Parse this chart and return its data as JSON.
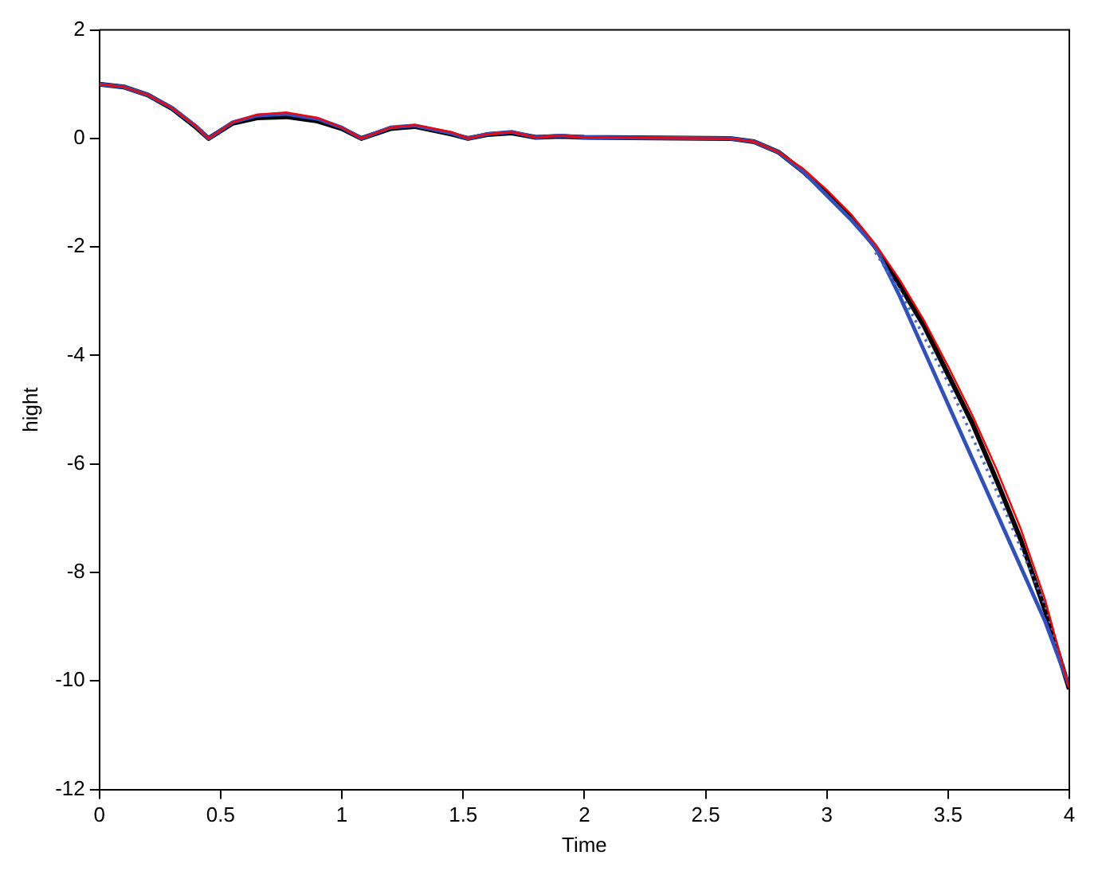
{
  "chart_data": {
    "type": "line",
    "xlabel": "Time",
    "ylabel": "hight",
    "xlim": [
      0,
      4
    ],
    "ylim": [
      -12,
      2
    ],
    "xticks": [
      0,
      0.5,
      1,
      1.5,
      2,
      2.5,
      3,
      3.5,
      4
    ],
    "yticks": [
      -12,
      -10,
      -8,
      -6,
      -4,
      -2,
      0,
      2
    ],
    "grid": false,
    "legend": false,
    "marker": "none",
    "series": [
      {
        "color": "#000000",
        "line_style": "solid",
        "x": [
          0,
          0.1,
          0.2,
          0.3,
          0.4,
          0.45,
          0.55,
          0.65,
          0.77,
          0.9,
          1.0,
          1.08,
          1.2,
          1.3,
          1.45,
          1.52,
          1.6,
          1.7,
          1.8,
          1.9,
          2.0,
          2.6,
          2.7,
          2.8,
          2.9,
          3.0,
          3.1,
          3.2,
          3.3,
          3.4,
          3.5,
          3.6,
          3.7,
          3.8,
          3.9,
          4.0
        ],
        "values": [
          1,
          0.95,
          0.8,
          0.55,
          0.2,
          0,
          0.28,
          0.38,
          0.4,
          0.32,
          0.18,
          0,
          0.18,
          0.22,
          0.08,
          0,
          0.07,
          0.1,
          0.02,
          0.04,
          0.02,
          0,
          -0.06,
          -0.25,
          -0.6,
          -1.0,
          -1.45,
          -2.0,
          -2.7,
          -3.45,
          -4.35,
          -5.25,
          -6.3,
          -7.4,
          -8.7,
          -10.15
        ]
      },
      {
        "color": "#3050c0",
        "line_style": "solid",
        "x": [
          0,
          0.1,
          0.2,
          0.3,
          0.4,
          0.45,
          0.55,
          0.65,
          0.77,
          0.9,
          1.0,
          1.08,
          1.2,
          1.3,
          1.45,
          1.52,
          1.6,
          1.7,
          1.8,
          1.9,
          2.0,
          2.6,
          2.7,
          2.8,
          2.9,
          3.0,
          3.1,
          3.2,
          3.3,
          3.4,
          3.5,
          3.6,
          3.7,
          3.8,
          3.9,
          4.0
        ],
        "values": [
          1,
          0.95,
          0.8,
          0.56,
          0.22,
          0,
          0.3,
          0.42,
          0.45,
          0.36,
          0.2,
          0,
          0.2,
          0.24,
          0.1,
          0,
          0.08,
          0.12,
          0.02,
          0.05,
          0.02,
          0,
          -0.06,
          -0.25,
          -0.6,
          -1.05,
          -1.5,
          -2.0,
          -2.9,
          -3.9,
          -4.9,
          -5.9,
          -6.9,
          -7.9,
          -8.9,
          -10.1
        ]
      },
      {
        "color": "#4a6ad0",
        "line_style": "dotted",
        "x": [
          3.2,
          3.3,
          3.5,
          3.7,
          3.9,
          4.0
        ],
        "values": [
          -2.1,
          -2.8,
          -4.5,
          -6.5,
          -8.6,
          -10.1
        ]
      },
      {
        "color": "#ff0000",
        "line_style": "solid",
        "x": [
          0,
          0.1,
          0.2,
          0.3,
          0.4,
          0.45,
          0.55,
          0.65,
          0.77,
          0.9,
          1.0,
          1.08,
          1.2,
          1.3,
          1.45,
          1.52,
          1.6,
          1.7,
          1.8,
          1.9,
          2.0,
          2.6,
          2.7,
          2.8,
          2.9,
          3.0,
          3.1,
          3.2,
          3.3,
          3.4,
          3.5,
          3.6,
          3.7,
          3.8,
          3.9,
          4.0
        ],
        "values": [
          1,
          0.95,
          0.8,
          0.56,
          0.22,
          0,
          0.3,
          0.44,
          0.48,
          0.38,
          0.2,
          0,
          0.2,
          0.25,
          0.12,
          0,
          0.08,
          0.12,
          0.02,
          0.05,
          0.02,
          0,
          -0.06,
          -0.25,
          -0.55,
          -0.95,
          -1.4,
          -1.95,
          -2.6,
          -3.35,
          -4.2,
          -5.1,
          -6.1,
          -7.2,
          -8.5,
          -10.15
        ]
      }
    ]
  }
}
